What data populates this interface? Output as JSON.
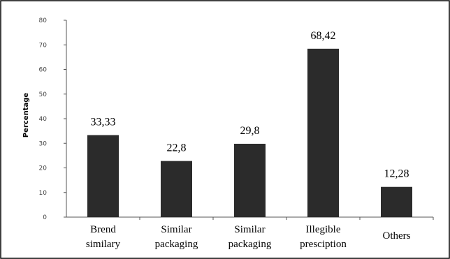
{
  "chart_data": {
    "type": "bar",
    "ylabel": "Percentage",
    "xlabel": "",
    "ylim": [
      0,
      80
    ],
    "yticks": [
      "0",
      "10",
      "20",
      "30",
      "40",
      "50",
      "60",
      "70",
      "80"
    ],
    "grid": false,
    "categories": [
      [
        "Brend",
        "similary"
      ],
      [
        "Similar",
        "packaging"
      ],
      [
        "Similar",
        "packaging"
      ],
      [
        "Illegible",
        "presciption"
      ],
      [
        "Others"
      ]
    ],
    "values": [
      33.33,
      22.8,
      29.8,
      68.42,
      12.28
    ],
    "data_labels": [
      "33,33",
      "22,8",
      "29,8",
      "68,42",
      "12,28"
    ],
    "colors": {
      "bar": "#2b2b2b",
      "axis": "#555555",
      "frame": "#000000"
    }
  }
}
